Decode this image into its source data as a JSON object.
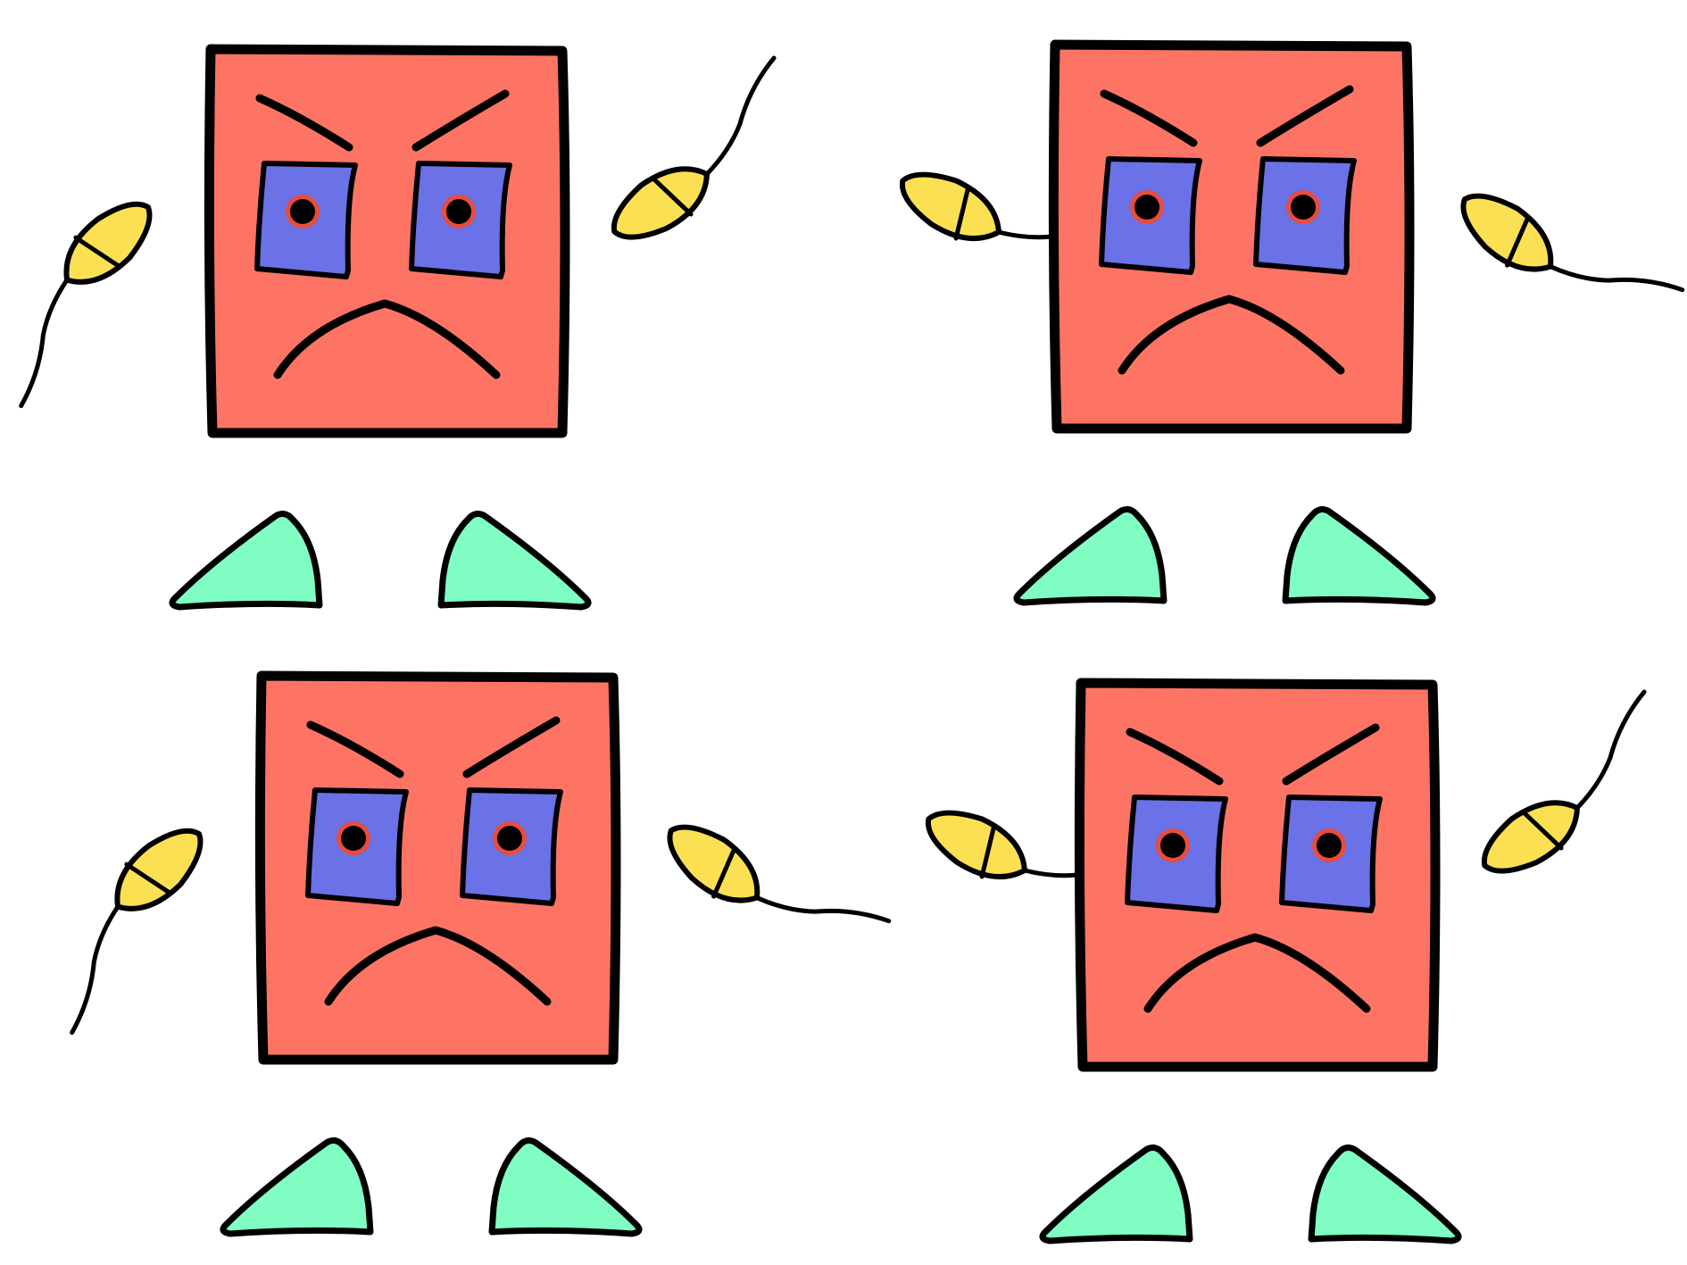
{
  "scene": {
    "title": "",
    "background": "#ffffff",
    "character": "grumpy-square-robot",
    "count": 4,
    "colors": {
      "body": "#fd7465",
      "eye": "#6b71e6",
      "pupil": "#000000",
      "pupil_ring": "#e84c3c",
      "hand": "#fce053",
      "foot": "#80fdc3",
      "outline": "#000000"
    }
  },
  "figures": [
    {
      "id": "top-left",
      "pose": "left-arm-down-right-arm-up"
    },
    {
      "id": "top-right",
      "pose": "left-arm-up-right-arm-down"
    },
    {
      "id": "bottom-left",
      "pose": "left-arm-down-right-arm-down"
    },
    {
      "id": "bottom-right",
      "pose": "left-arm-up-right-arm-up"
    }
  ]
}
